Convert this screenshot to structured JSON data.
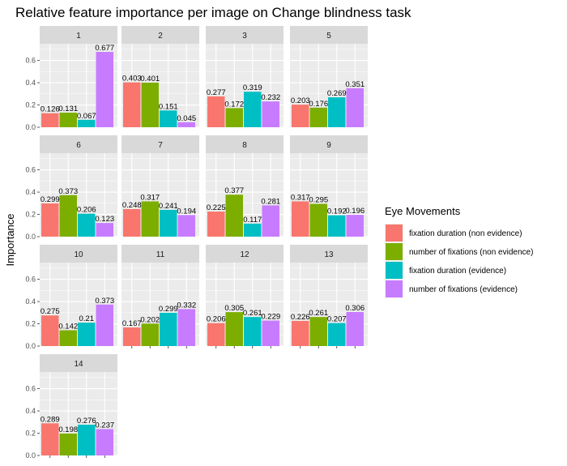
{
  "chart_data": {
    "type": "bar",
    "title": "Relative feature importance per image on Change blindness task",
    "ylabel": "Importance",
    "xlabel": "",
    "ylim": [
      0,
      0.75
    ],
    "yticks": [
      "0.0",
      "0.2",
      "0.4",
      "0.6"
    ],
    "grid": true,
    "legend": {
      "title": "Eye Movements",
      "placement": "right"
    },
    "series": [
      {
        "name": "fixation duration (non evidence)",
        "color": "#F8766D"
      },
      {
        "name": "number of fixations (non evidence)",
        "color": "#7CAE00"
      },
      {
        "name": "fixation duration (evidence)",
        "color": "#00BFC4"
      },
      {
        "name": "number of fixations (evidence)",
        "color": "#C77CFF"
      }
    ],
    "panels": [
      {
        "label": "1",
        "values": [
          0.126,
          0.131,
          0.067,
          0.677
        ],
        "value_labels": [
          "0.126",
          "0.131",
          "0.067",
          "0.677"
        ]
      },
      {
        "label": "2",
        "values": [
          0.403,
          0.401,
          0.151,
          0.045
        ],
        "value_labels": [
          "0.403",
          "0.401",
          "0.151",
          "0.045"
        ]
      },
      {
        "label": "3",
        "values": [
          0.277,
          0.172,
          0.319,
          0.232
        ],
        "value_labels": [
          "0.277",
          "0.172",
          "0.319",
          "0.232"
        ]
      },
      {
        "label": "5",
        "values": [
          0.203,
          0.176,
          0.269,
          0.351
        ],
        "value_labels": [
          "0.203",
          "0.176",
          "0.269",
          "0.351"
        ]
      },
      {
        "label": "6",
        "values": [
          0.299,
          0.373,
          0.206,
          0.123
        ],
        "value_labels": [
          "0.299",
          "0.373",
          "0.206",
          "0.123"
        ]
      },
      {
        "label": "7",
        "values": [
          0.248,
          0.317,
          0.241,
          0.194
        ],
        "value_labels": [
          "0.248",
          "0.317",
          "0.241",
          "0.194"
        ]
      },
      {
        "label": "8",
        "values": [
          0.225,
          0.377,
          0.117,
          0.281
        ],
        "value_labels": [
          "0.225",
          "0.377",
          "0.117",
          "0.281"
        ]
      },
      {
        "label": "9",
        "values": [
          0.317,
          0.295,
          0.192,
          0.196
        ],
        "value_labels": [
          "0.317",
          "0.295",
          "0.192",
          "0.196"
        ]
      },
      {
        "label": "10",
        "values": [
          0.275,
          0.142,
          0.21,
          0.373
        ],
        "value_labels": [
          "0.275",
          "0.142",
          "0.21",
          "0.373"
        ]
      },
      {
        "label": "11",
        "values": [
          0.167,
          0.202,
          0.299,
          0.332
        ],
        "value_labels": [
          "0.167",
          "0.202",
          "0.299",
          "0.332"
        ]
      },
      {
        "label": "12",
        "values": [
          0.206,
          0.305,
          0.261,
          0.229
        ],
        "value_labels": [
          "0.206",
          "0.305",
          "0.261",
          "0.229"
        ]
      },
      {
        "label": "13",
        "values": [
          0.226,
          0.261,
          0.207,
          0.306
        ],
        "value_labels": [
          "0.226",
          "0.261",
          "0.207",
          "0.306"
        ]
      },
      {
        "label": "14",
        "values": [
          0.289,
          0.198,
          0.276,
          0.237
        ],
        "value_labels": [
          "0.289",
          "0.198",
          "0.276",
          "0.237"
        ]
      }
    ]
  }
}
